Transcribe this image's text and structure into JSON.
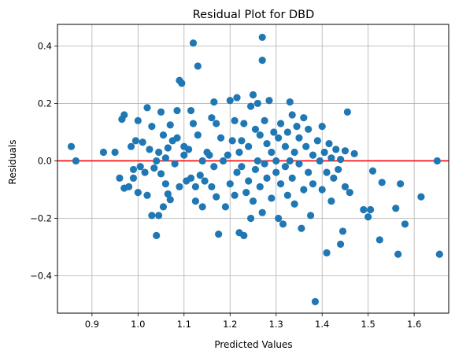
{
  "chart_data": {
    "type": "scatter",
    "title": "Residual Plot for DBD",
    "xlabel": "Predicted Values",
    "ylabel": "Residuals",
    "xlim": [
      0.825,
      1.675
    ],
    "ylim": [
      -0.53,
      0.475
    ],
    "x_ticks": [
      0.9,
      1.0,
      1.1,
      1.2,
      1.3,
      1.4,
      1.5,
      1.6
    ],
    "x_tick_labels": [
      "0.9",
      "1.0",
      "1.1",
      "1.2",
      "1.3",
      "1.4",
      "1.5",
      "1.6"
    ],
    "y_ticks": [
      -0.4,
      -0.2,
      0.0,
      0.2,
      0.4
    ],
    "y_tick_labels": [
      "−0.4",
      "−0.2",
      "0.0",
      "0.2",
      "0.4"
    ],
    "grid": true,
    "marker_color": "#1f77b4",
    "reference_line": {
      "y": 0.0,
      "color": "#ff0000"
    },
    "series": [
      {
        "points": [
          [
            0.855,
            0.05
          ],
          [
            0.865,
            0.0
          ],
          [
            0.925,
            0.03
          ],
          [
            0.95,
            0.03
          ],
          [
            0.96,
            -0.06
          ],
          [
            0.965,
            0.145
          ],
          [
            0.97,
            0.16
          ],
          [
            0.97,
            -0.095
          ],
          [
            0.98,
            -0.09
          ],
          [
            0.985,
            0.05
          ],
          [
            0.99,
            -0.03
          ],
          [
            0.99,
            -0.06
          ],
          [
            0.995,
            0.07
          ],
          [
            1.0,
            0.14
          ],
          [
            1.0,
            -0.11
          ],
          [
            1.005,
            -0.02
          ],
          [
            1.01,
            0.065
          ],
          [
            1.015,
            -0.04
          ],
          [
            1.02,
            0.185
          ],
          [
            1.02,
            -0.12
          ],
          [
            1.025,
            0.04
          ],
          [
            1.03,
            -0.19
          ],
          [
            1.03,
            0.12
          ],
          [
            1.035,
            -0.025
          ],
          [
            1.04,
            0.0
          ],
          [
            1.04,
            -0.26
          ],
          [
            1.045,
            0.03
          ],
          [
            1.045,
            -0.19
          ],
          [
            1.05,
            0.17
          ],
          [
            1.05,
            -0.045
          ],
          [
            1.055,
            0.09
          ],
          [
            1.055,
            -0.16
          ],
          [
            1.06,
            0.01
          ],
          [
            1.06,
            -0.08
          ],
          [
            1.065,
            0.045
          ],
          [
            1.065,
            -0.115
          ],
          [
            1.07,
            0.125
          ],
          [
            1.07,
            -0.135
          ],
          [
            1.075,
            0.07
          ],
          [
            1.08,
            -0.01
          ],
          [
            1.085,
            0.08
          ],
          [
            1.085,
            0.175
          ],
          [
            1.09,
            0.28
          ],
          [
            1.09,
            -0.09
          ],
          [
            1.095,
            0.27
          ],
          [
            1.1,
            0.05
          ],
          [
            1.1,
            0.02
          ],
          [
            1.105,
            -0.07
          ],
          [
            1.11,
            0.04
          ],
          [
            1.115,
            0.175
          ],
          [
            1.115,
            -0.06
          ],
          [
            1.12,
            0.41
          ],
          [
            1.12,
            0.13
          ],
          [
            1.125,
            -0.09
          ],
          [
            1.125,
            -0.14
          ],
          [
            1.13,
            0.33
          ],
          [
            1.13,
            0.09
          ],
          [
            1.135,
            -0.05
          ],
          [
            1.14,
            0.0
          ],
          [
            1.14,
            -0.16
          ],
          [
            1.145,
            -0.07
          ],
          [
            1.15,
            0.03
          ],
          [
            1.155,
            0.02
          ],
          [
            1.16,
            0.15
          ],
          [
            1.16,
            -0.09
          ],
          [
            1.165,
            0.205
          ],
          [
            1.165,
            -0.02
          ],
          [
            1.17,
            0.13
          ],
          [
            1.17,
            -0.125
          ],
          [
            1.175,
            -0.255
          ],
          [
            1.18,
            0.08
          ],
          [
            1.185,
            0.0
          ],
          [
            1.19,
            -0.16
          ],
          [
            1.195,
            0.02
          ],
          [
            1.2,
            0.21
          ],
          [
            1.2,
            -0.08
          ],
          [
            1.205,
            0.07
          ],
          [
            1.21,
            0.14
          ],
          [
            1.21,
            -0.12
          ],
          [
            1.215,
            0.22
          ],
          [
            1.215,
            -0.04
          ],
          [
            1.22,
            0.03
          ],
          [
            1.22,
            -0.25
          ],
          [
            1.225,
            0.07
          ],
          [
            1.225,
            -0.02
          ],
          [
            1.23,
            -0.26
          ],
          [
            1.23,
            0.13
          ],
          [
            1.235,
            -0.11
          ],
          [
            1.24,
            0.05
          ],
          [
            1.24,
            -0.07
          ],
          [
            1.245,
            0.19
          ],
          [
            1.245,
            -0.2
          ],
          [
            1.25,
            0.23
          ],
          [
            1.25,
            -0.14
          ],
          [
            1.255,
            0.11
          ],
          [
            1.255,
            -0.03
          ],
          [
            1.26,
            0.2
          ],
          [
            1.26,
            0.0
          ],
          [
            1.265,
            -0.09
          ],
          [
            1.265,
            0.09
          ],
          [
            1.27,
            0.43
          ],
          [
            1.27,
            0.35
          ],
          [
            1.27,
            -0.18
          ],
          [
            1.275,
            0.14
          ],
          [
            1.275,
            -0.01
          ],
          [
            1.28,
            0.06
          ],
          [
            1.28,
            -0.06
          ],
          [
            1.285,
            0.21
          ],
          [
            1.29,
            0.03
          ],
          [
            1.29,
            -0.13
          ],
          [
            1.295,
            0.1
          ],
          [
            1.3,
            0.0
          ],
          [
            1.3,
            -0.04
          ],
          [
            1.305,
            0.08
          ],
          [
            1.305,
            -0.2
          ],
          [
            1.31,
            0.13
          ],
          [
            1.31,
            -0.08
          ],
          [
            1.315,
            -0.22
          ],
          [
            1.32,
            0.05
          ],
          [
            1.32,
            -0.02
          ],
          [
            1.325,
            0.1
          ],
          [
            1.325,
            -0.12
          ],
          [
            1.33,
            0.205
          ],
          [
            1.33,
            0.0
          ],
          [
            1.335,
            0.16
          ],
          [
            1.335,
            -0.06
          ],
          [
            1.34,
            0.03
          ],
          [
            1.34,
            -0.15
          ],
          [
            1.345,
            0.12
          ],
          [
            1.35,
            -0.01
          ],
          [
            1.35,
            0.08
          ],
          [
            1.355,
            -0.235
          ],
          [
            1.36,
            0.15
          ],
          [
            1.36,
            -0.1
          ],
          [
            1.365,
            0.05
          ],
          [
            1.37,
            -0.04
          ],
          [
            1.37,
            0.11
          ],
          [
            1.375,
            -0.19
          ],
          [
            1.38,
            0.02
          ],
          [
            1.38,
            -0.08
          ],
          [
            1.385,
            -0.49
          ],
          [
            1.39,
            0.07
          ],
          [
            1.395,
            0.0
          ],
          [
            1.4,
            0.12
          ],
          [
            1.4,
            -0.1
          ],
          [
            1.405,
            0.03
          ],
          [
            1.41,
            -0.04
          ],
          [
            1.41,
            -0.32
          ],
          [
            1.415,
            0.06
          ],
          [
            1.42,
            0.01
          ],
          [
            1.42,
            -0.14
          ],
          [
            1.425,
            -0.06
          ],
          [
            1.43,
            0.04
          ],
          [
            1.435,
            -0.03
          ],
          [
            1.44,
            0.005
          ],
          [
            1.44,
            -0.29
          ],
          [
            1.445,
            -0.245
          ],
          [
            1.45,
            0.035
          ],
          [
            1.45,
            -0.09
          ],
          [
            1.455,
            0.17
          ],
          [
            1.46,
            -0.11
          ],
          [
            1.47,
            0.025
          ],
          [
            1.49,
            -0.17
          ],
          [
            1.5,
            -0.195
          ],
          [
            1.505,
            -0.17
          ],
          [
            1.51,
            -0.035
          ],
          [
            1.525,
            -0.275
          ],
          [
            1.53,
            -0.075
          ],
          [
            1.56,
            -0.165
          ],
          [
            1.565,
            -0.325
          ],
          [
            1.57,
            -0.08
          ],
          [
            1.58,
            -0.22
          ],
          [
            1.615,
            -0.125
          ],
          [
            1.65,
            0.0
          ],
          [
            1.655,
            -0.325
          ]
        ]
      }
    ]
  }
}
